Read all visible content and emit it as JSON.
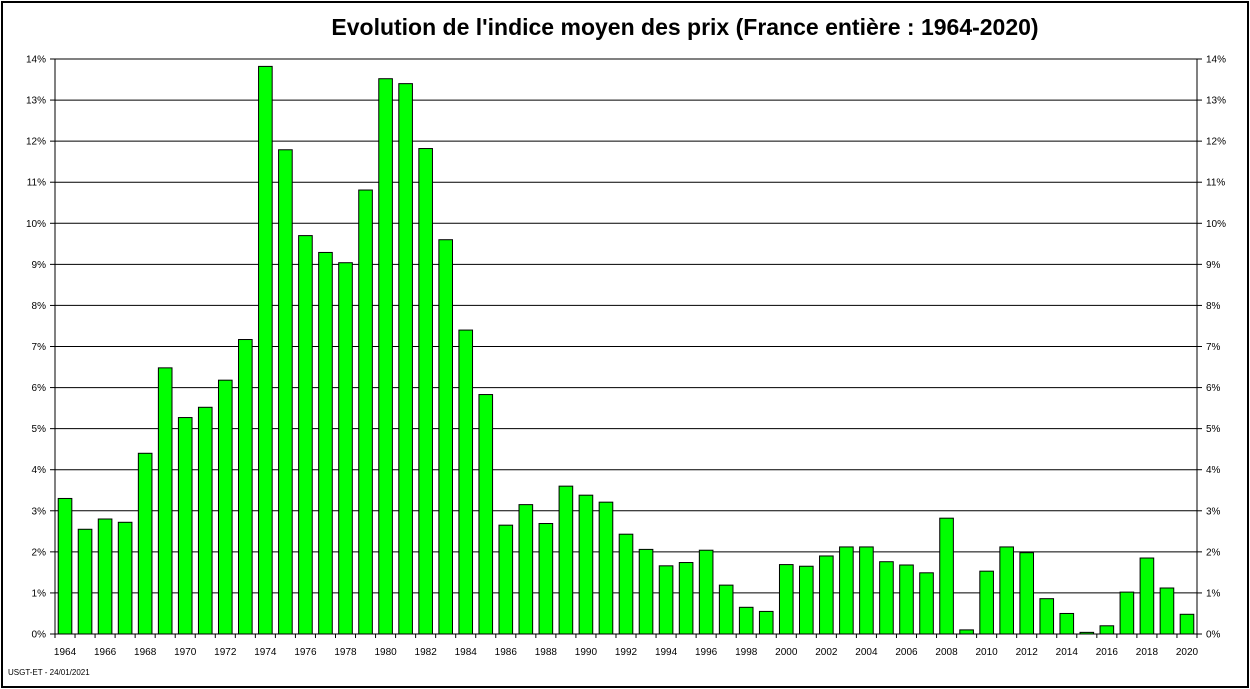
{
  "credit": "USGT-ET - 24/01/2021",
  "chart_data": {
    "type": "bar",
    "title": "Evolution de l'indice moyen des prix (France entière : 1964-2020)",
    "xlabel": "",
    "ylabel": "",
    "ylim": [
      0,
      14
    ],
    "yticks": [
      "0%",
      "1%",
      "2%",
      "3%",
      "4%",
      "5%",
      "6%",
      "7%",
      "8%",
      "9%",
      "10%",
      "11%",
      "12%",
      "13%",
      "14%"
    ],
    "grid": true,
    "legend": "none",
    "bar_color": "#00ff00",
    "categories": [
      1964,
      1965,
      1966,
      1967,
      1968,
      1969,
      1970,
      1971,
      1972,
      1973,
      1974,
      1975,
      1976,
      1977,
      1978,
      1979,
      1980,
      1981,
      1982,
      1983,
      1984,
      1985,
      1986,
      1987,
      1988,
      1989,
      1990,
      1991,
      1992,
      1993,
      1994,
      1995,
      1996,
      1997,
      1998,
      1999,
      2000,
      2001,
      2002,
      2003,
      2004,
      2005,
      2006,
      2007,
      2008,
      2009,
      2010,
      2011,
      2012,
      2013,
      2014,
      2015,
      2016,
      2017,
      2018,
      2019,
      2020
    ],
    "x_tick_labels": [
      "1964",
      "1966",
      "1968",
      "1970",
      "1972",
      "1974",
      "1976",
      "1978",
      "1980",
      "1982",
      "1984",
      "1986",
      "1988",
      "1990",
      "1992",
      "1994",
      "1996",
      "1998",
      "2000",
      "2002",
      "2004",
      "2006",
      "2008",
      "2010",
      "2012",
      "2014",
      "2016",
      "2018",
      "2020"
    ],
    "values": [
      3.3,
      2.55,
      2.8,
      2.72,
      4.4,
      6.48,
      5.27,
      5.52,
      6.18,
      7.17,
      13.82,
      11.79,
      9.7,
      9.29,
      9.04,
      10.81,
      13.52,
      13.4,
      11.82,
      9.6,
      7.4,
      5.83,
      2.65,
      3.15,
      2.69,
      3.6,
      3.38,
      3.21,
      2.43,
      2.06,
      1.66,
      1.74,
      2.04,
      1.19,
      0.65,
      0.55,
      1.69,
      1.65,
      1.9,
      2.12,
      2.12,
      1.76,
      1.68,
      1.49,
      2.82,
      0.1,
      1.53,
      2.12,
      1.98,
      0.86,
      0.5,
      0.04,
      0.2,
      1.02,
      1.85,
      1.12,
      0.48
    ]
  }
}
